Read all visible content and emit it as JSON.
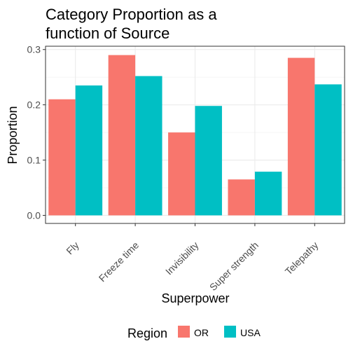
{
  "chart_data": {
    "type": "bar",
    "title": [
      "Category Proportion as a",
      "function of Source"
    ],
    "xlabel": "Superpower",
    "ylabel": "Proportion",
    "categories": [
      "Fly",
      "Freeze time",
      "Invisibility",
      "Super strength",
      "Telepathy"
    ],
    "series": [
      {
        "name": "OR",
        "values": [
          0.21,
          0.29,
          0.15,
          0.065,
          0.285
        ],
        "color": "#F8766D"
      },
      {
        "name": "USA",
        "values": [
          0.235,
          0.252,
          0.198,
          0.079,
          0.237
        ],
        "color": "#00BFC4"
      }
    ],
    "ylim": [
      -0.0146,
      0.306
    ],
    "yticks": [
      "0.0",
      "0.1",
      "0.2",
      "0.3"
    ],
    "ytick_values": [
      0,
      0.1,
      0.2,
      0.3
    ],
    "grid": true,
    "legend": {
      "title": "Region",
      "position": "bottom"
    }
  }
}
